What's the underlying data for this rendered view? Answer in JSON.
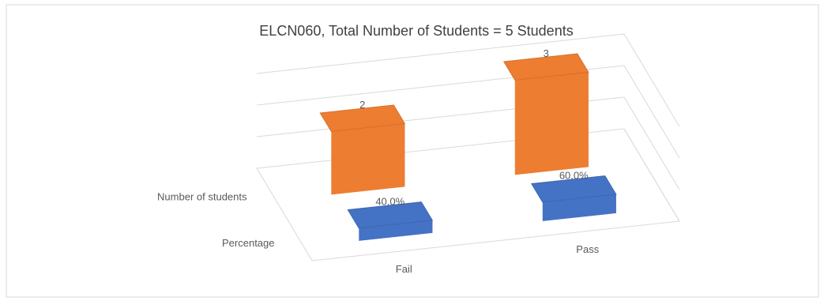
{
  "chart_data": {
    "type": "bar3d",
    "title": "ELCN060, Total Number of Students = 5 Students",
    "categories": [
      "Fail",
      "Pass"
    ],
    "series": [
      {
        "name": "Number of students",
        "color": "#ed7d31",
        "values": [
          2,
          3
        ]
      },
      {
        "name": "Percentage",
        "color": "#4472c4",
        "values": [
          0.4,
          0.6
        ],
        "value_labels": [
          "40.0%",
          "60.0%"
        ]
      }
    ],
    "ylim": [
      0,
      3
    ],
    "yticks": [
      0,
      1,
      2,
      3
    ],
    "grid": true
  }
}
